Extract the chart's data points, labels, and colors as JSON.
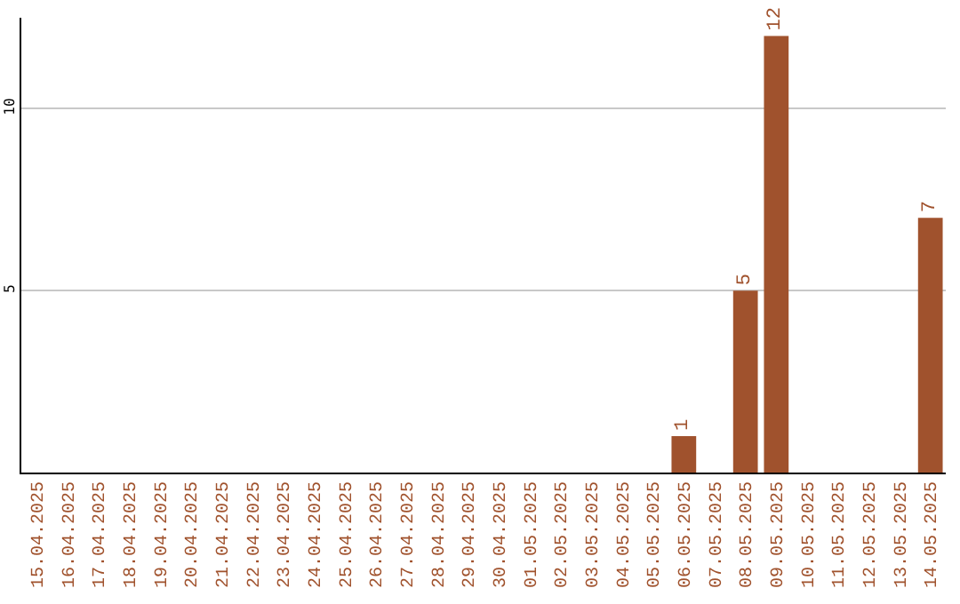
{
  "chart_data": {
    "type": "bar",
    "categories": [
      "15.04.2025",
      "16.04.2025",
      "17.04.2025",
      "18.04.2025",
      "19.04.2025",
      "20.04.2025",
      "21.04.2025",
      "22.04.2025",
      "23.04.2025",
      "24.04.2025",
      "25.04.2025",
      "26.04.2025",
      "27.04.2025",
      "28.04.2025",
      "29.04.2025",
      "30.04.2025",
      "01.05.2025",
      "02.05.2025",
      "03.05.2025",
      "04.05.2025",
      "05.05.2025",
      "06.05.2025",
      "07.05.2025",
      "08.05.2025",
      "09.05.2025",
      "10.05.2025",
      "11.05.2025",
      "12.05.2025",
      "13.05.2025",
      "14.05.2025"
    ],
    "values": [
      0,
      0,
      0,
      0,
      0,
      0,
      0,
      0,
      0,
      0,
      0,
      0,
      0,
      0,
      0,
      0,
      0,
      0,
      0,
      0,
      0,
      1,
      0,
      5,
      12,
      0,
      0,
      0,
      0,
      7
    ],
    "value_labels": [
      null,
      null,
      null,
      null,
      null,
      null,
      null,
      null,
      null,
      null,
      null,
      null,
      null,
      null,
      null,
      null,
      null,
      null,
      null,
      null,
      null,
      "1",
      null,
      "5",
      "12",
      null,
      null,
      null,
      null,
      "7"
    ],
    "color": "#a0522d",
    "ylim": [
      0,
      12.5
    ],
    "yticks": [
      5,
      10
    ],
    "grid": "y"
  }
}
